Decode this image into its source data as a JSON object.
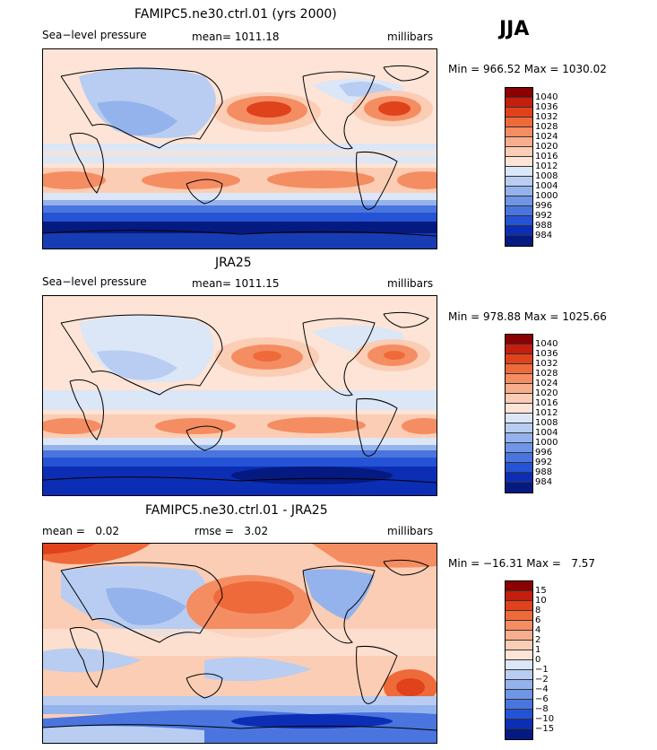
{
  "season": "JJA",
  "panels": [
    {
      "title": "FAMIPC5.ne30.ctrl.01 (yrs 2000)",
      "left_label": "Sea−level pressure",
      "mid_label": "mean= 1011.18",
      "right_label": "millibars",
      "minmax": "Min = 966.52 Max = 1030.02",
      "scale_labels": [
        "1040",
        "1036",
        "1032",
        "1028",
        "1024",
        "1020",
        "1016",
        "1012",
        "1008",
        "1004",
        "1000",
        "996",
        "992",
        "988",
        "984"
      ]
    },
    {
      "title": "JRA25",
      "left_label": "Sea−level pressure",
      "mid_label": "mean= 1011.15",
      "right_label": "millibars",
      "minmax": "Min = 978.88 Max = 1025.66",
      "scale_labels": [
        "1040",
        "1036",
        "1032",
        "1028",
        "1024",
        "1020",
        "1016",
        "1012",
        "1008",
        "1004",
        "1000",
        "996",
        "992",
        "988",
        "984"
      ]
    },
    {
      "title": "FAMIPC5.ne30.ctrl.01 - JRA25",
      "left_label": "mean =   0.02",
      "mid_label": "rmse =   3.02",
      "right_label": "millibars",
      "minmax": "Min = −16.31 Max =   7.57",
      "scale_labels": [
        "15",
        "10",
        "8",
        "6",
        "4",
        "2",
        "1",
        "0",
        "−1",
        "−2",
        "−4",
        "−6",
        "−8",
        "−10",
        "−15"
      ]
    }
  ],
  "colors": {
    "scale": [
      "#8b0000",
      "#c41e0e",
      "#e0421c",
      "#ef6a3a",
      "#f58d62",
      "#f8ae8c",
      "#fbcdb4",
      "#fde4d6",
      "#dbe6f7",
      "#b8cdf1",
      "#94b3ec",
      "#6f96e6",
      "#4a75df",
      "#2553d5",
      "#0c2eb5",
      "#051a80"
    ],
    "land_line": "#000000"
  }
}
